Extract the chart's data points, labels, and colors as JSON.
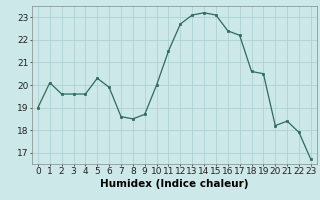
{
  "x": [
    0,
    1,
    2,
    3,
    4,
    5,
    6,
    7,
    8,
    9,
    10,
    11,
    12,
    13,
    14,
    15,
    16,
    17,
    18,
    19,
    20,
    21,
    22,
    23
  ],
  "y": [
    19.0,
    20.1,
    19.6,
    19.6,
    19.6,
    20.3,
    19.9,
    18.6,
    18.5,
    18.7,
    20.0,
    21.5,
    22.7,
    23.1,
    23.2,
    23.1,
    22.4,
    22.2,
    20.6,
    20.5,
    18.2,
    18.4,
    17.9,
    16.7
  ],
  "line_color": "#2e6b5e",
  "marker_color": "#2e6b5e",
  "bg_color": "#cce8e8",
  "grid_color": "#aacece",
  "xlabel": "Humidex (Indice chaleur)",
  "xlabel_fontsize": 7.5,
  "tick_fontsize": 6.5,
  "xlim": [
    -0.5,
    23.5
  ],
  "ylim": [
    16.5,
    23.5
  ],
  "yticks": [
    17,
    18,
    19,
    20,
    21,
    22,
    23
  ],
  "xticks": [
    0,
    1,
    2,
    3,
    4,
    5,
    6,
    7,
    8,
    9,
    10,
    11,
    12,
    13,
    14,
    15,
    16,
    17,
    18,
    19,
    20,
    21,
    22,
    23
  ]
}
